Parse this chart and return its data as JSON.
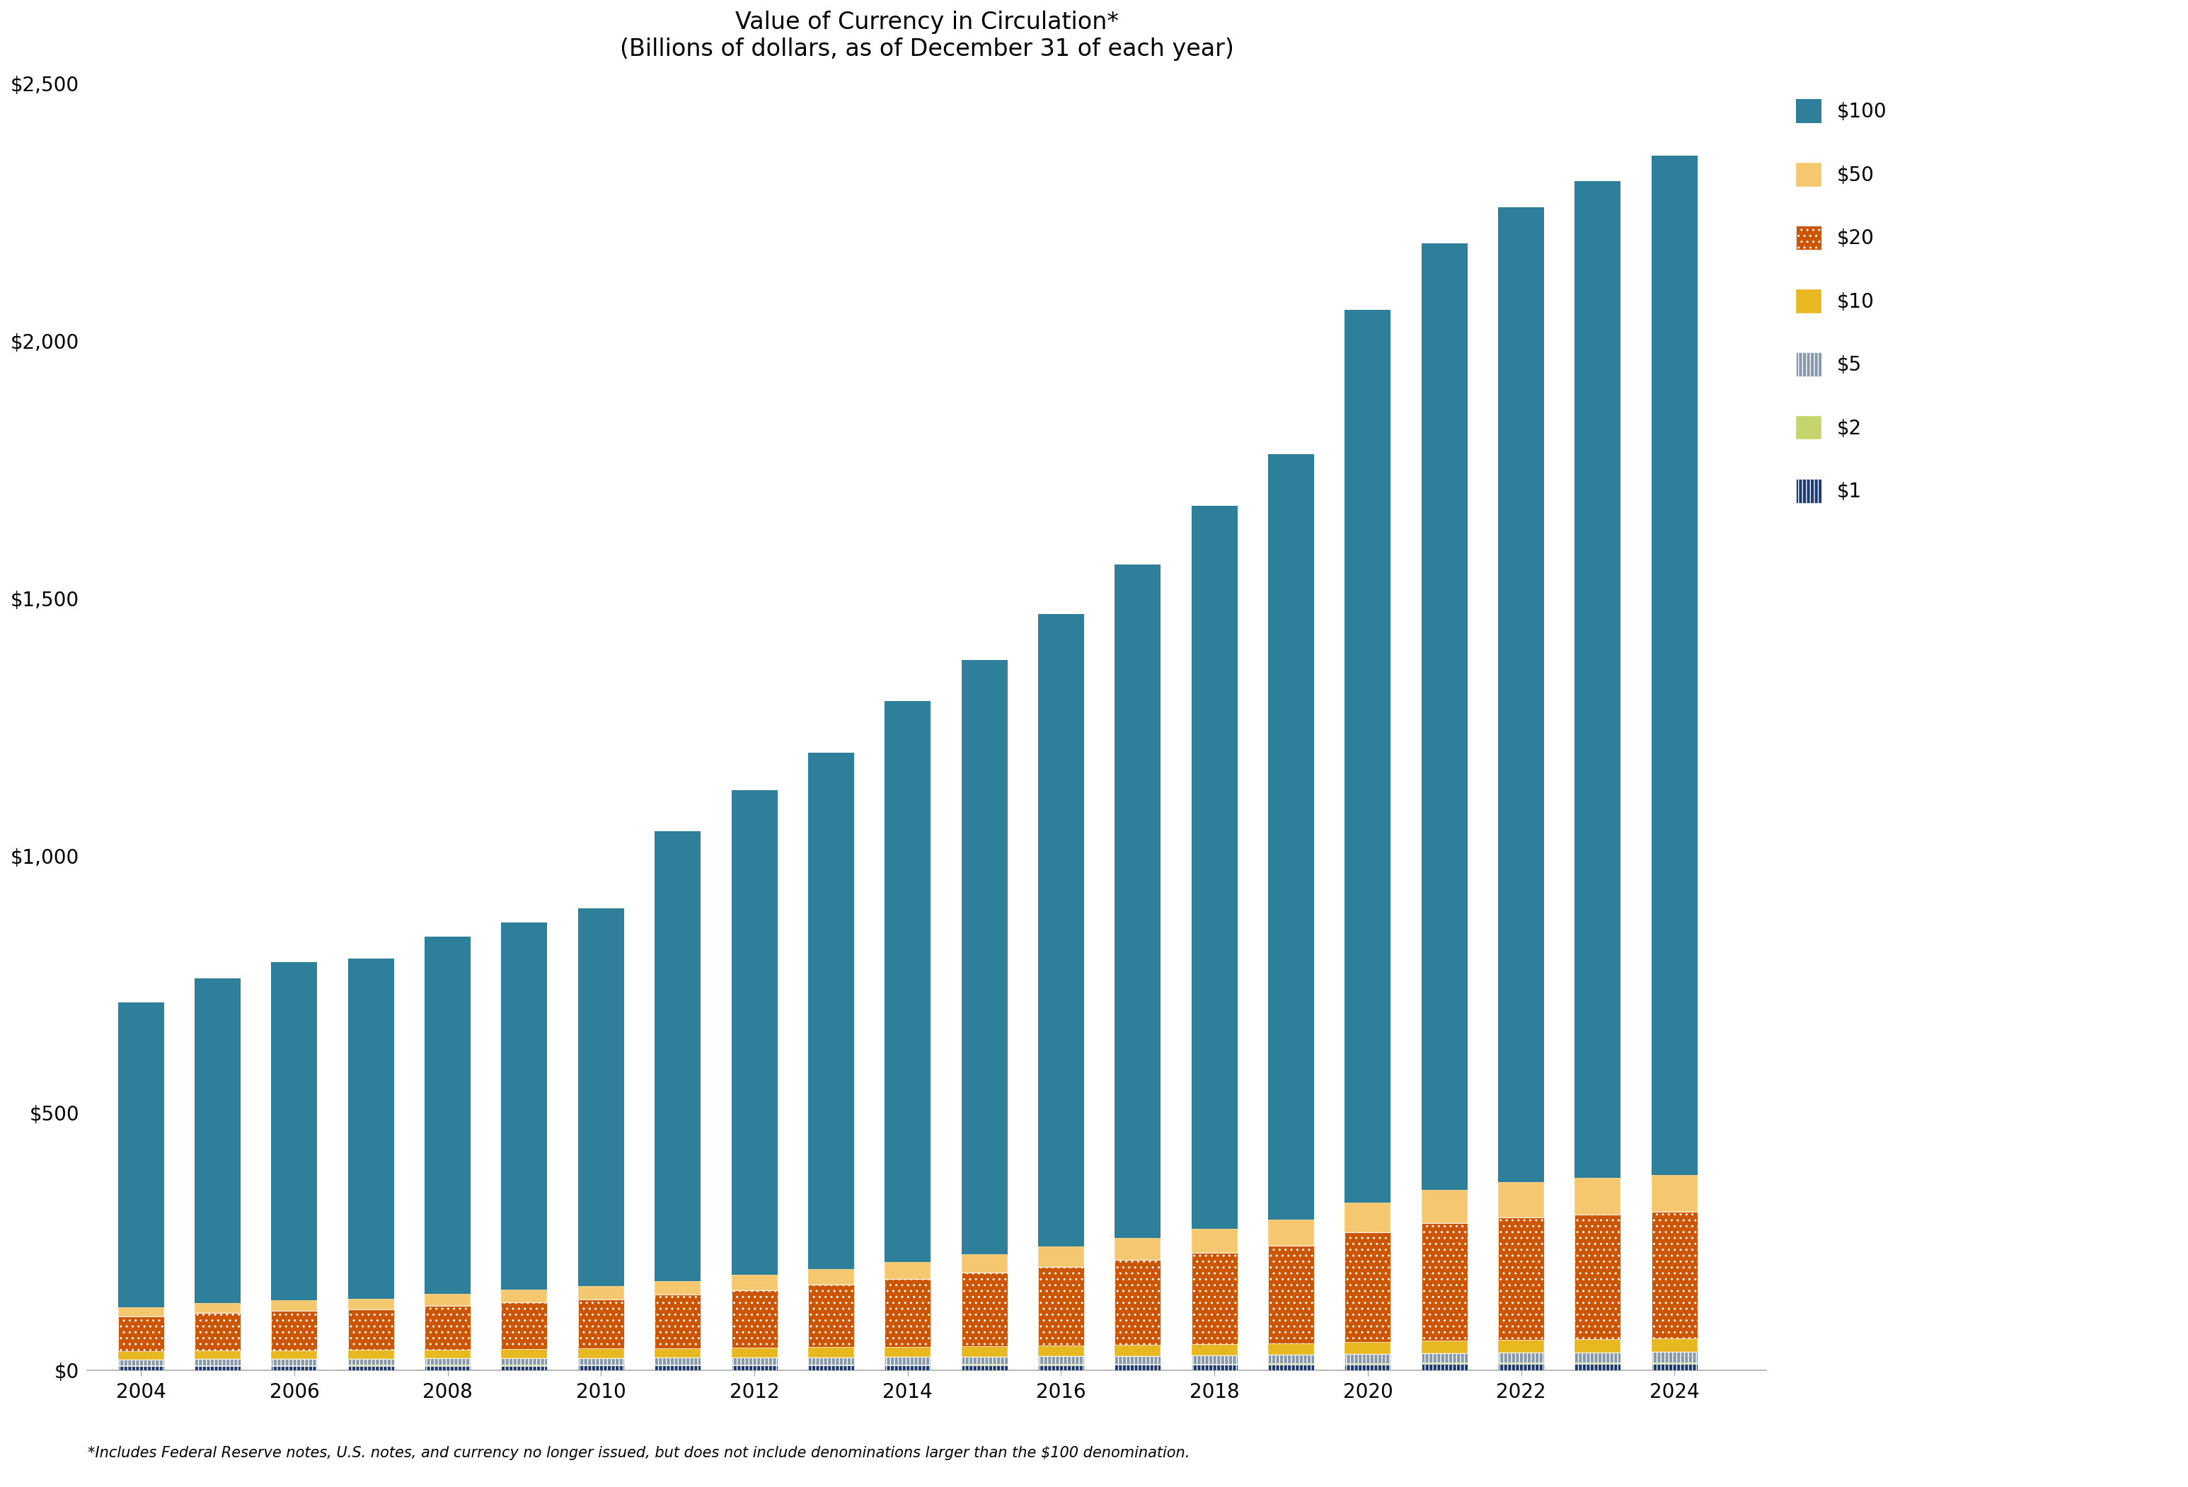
{
  "title_line1": "Value of Currency in Circulation*",
  "title_line2": "(Billions of dollars, as of December 31 of each year)",
  "footnote": "*Includes Federal Reserve notes, U.S. notes, and currency no longer issued, but does not include denominations larger than the $100 denomination.",
  "years": [
    2004,
    2005,
    2006,
    2007,
    2008,
    2009,
    2010,
    2011,
    2012,
    2013,
    2014,
    2015,
    2016,
    2017,
    2018,
    2019,
    2020,
    2021,
    2022,
    2023,
    2024
  ],
  "colors": {
    "$1": "#1e3a6e",
    "$2": "#c5d56b",
    "$5": "#8899aa",
    "$10": "#e8b820",
    "$20": "#cc5500",
    "$50": "#f5c870",
    "$100": "#2d7f9a"
  },
  "val_1": [
    8.7,
    8.9,
    9.0,
    9.1,
    9.2,
    9.2,
    9.4,
    9.5,
    9.7,
    9.8,
    10.0,
    10.2,
    10.4,
    10.7,
    11.0,
    11.3,
    11.8,
    12.2,
    12.5,
    12.7,
    12.9
  ],
  "val_2": [
    1.5,
    1.6,
    1.6,
    1.7,
    1.7,
    1.8,
    1.8,
    1.8,
    1.9,
    1.9,
    2.0,
    2.0,
    2.1,
    2.2,
    2.3,
    2.4,
    2.6,
    2.7,
    2.8,
    2.9,
    3.0
  ],
  "val_5": [
    11.0,
    11.5,
    11.8,
    11.9,
    12.4,
    12.8,
    13.0,
    13.3,
    13.7,
    14.0,
    14.3,
    14.7,
    15.0,
    15.4,
    15.9,
    16.3,
    17.5,
    18.5,
    19.0,
    19.5,
    19.8
  ],
  "val_10": [
    16.0,
    16.5,
    17.0,
    17.0,
    17.5,
    18.0,
    18.2,
    18.5,
    19.0,
    19.5,
    20.0,
    20.5,
    21.0,
    21.5,
    22.0,
    22.5,
    24.0,
    25.0,
    25.5,
    26.0,
    26.5
  ],
  "val_20": [
    68,
    73,
    77,
    79,
    85,
    91,
    96,
    104,
    112,
    121,
    131,
    142,
    153,
    165,
    177,
    190,
    212,
    228,
    237,
    242,
    246
  ],
  "val_50": [
    18,
    19,
    20,
    21,
    23,
    24,
    25,
    27,
    29,
    31,
    33,
    36,
    39,
    43,
    47,
    51,
    58,
    65,
    69,
    71,
    72
  ],
  "val_100_totals": [
    715,
    762,
    793,
    800,
    843,
    870,
    898,
    1048,
    1127,
    1200,
    1300,
    1380,
    1470,
    1565,
    1680,
    1780,
    2060,
    2190,
    2260,
    2310,
    2360
  ],
  "ylim": [
    0,
    2500
  ],
  "yticks": [
    0,
    500,
    1000,
    1500,
    2000,
    2500
  ],
  "bar_width": 0.6,
  "background_color": "#ffffff",
  "title_fontsize": 24,
  "tick_fontsize": 20,
  "legend_fontsize": 20,
  "footnote_fontsize": 15
}
